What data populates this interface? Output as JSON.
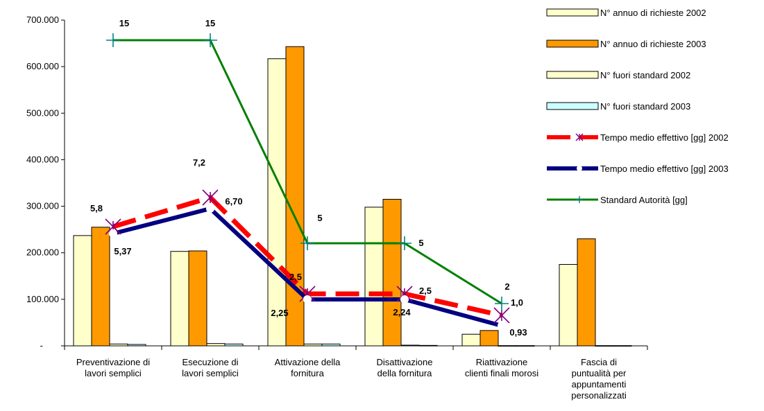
{
  "chart_data": {
    "type": "bar",
    "categories": [
      [
        "Preventivazione di",
        "lavori semplici"
      ],
      [
        "Esecuzione di",
        "lavori semplici"
      ],
      [
        "Attivazione della",
        "fornitura"
      ],
      [
        "Disattivazione",
        "della fornitura"
      ],
      [
        "Riattivazione",
        "clienti finali morosi"
      ],
      [
        "Fascia di",
        "puntualità per",
        "appuntamenti",
        "personalizzati"
      ]
    ],
    "ylim": [
      0,
      700000
    ],
    "yticks": [
      0,
      100000,
      200000,
      300000,
      400000,
      500000,
      600000,
      700000
    ],
    "ytick_labels": [
      "-",
      "100.000",
      "200.000",
      "300.000",
      "400.000",
      "500.000",
      "600.000",
      "700.000"
    ],
    "series": [
      {
        "name": "N° annuo di richieste 2002",
        "kind": "bar",
        "color": "#FFFFCC",
        "values": [
          237000,
          203000,
          617000,
          298000,
          25000,
          175000
        ]
      },
      {
        "name": "N° annuo di richieste 2003",
        "kind": "bar",
        "color": "#FF9900",
        "values": [
          255000,
          204000,
          643000,
          315000,
          33000,
          230000
        ]
      },
      {
        "name": "N° fuori standard 2002",
        "kind": "bar",
        "color": "#FFFFCC",
        "values": [
          4000,
          5000,
          4000,
          1500,
          500,
          500
        ]
      },
      {
        "name": "N° fuori standard 2003",
        "kind": "bar",
        "color": "#CCFFFF",
        "values": [
          3000,
          4000,
          4000,
          1000,
          500,
          500
        ]
      },
      {
        "name": "Tempo medio effettivo [gg] 2002",
        "kind": "line",
        "color": "#FF0000",
        "marker_color": "#800080",
        "values": [
          5.8,
          7.2,
          2.5,
          2.5,
          1.0,
          null
        ],
        "labels": [
          "5,8",
          "7,2",
          "2,5",
          "2,5",
          "1,0",
          ""
        ]
      },
      {
        "name": "Tempo medio effettivo [gg] 2003",
        "kind": "line",
        "color": "#000080",
        "values": [
          5.37,
          6.7,
          2.25,
          2.24,
          0.93,
          null
        ],
        "labels": [
          "5,37",
          "6,70",
          "2,25",
          "2,24",
          "0,93",
          ""
        ]
      },
      {
        "name": "Standard Autorità [gg]",
        "kind": "line",
        "color": "#008000",
        "marker_color": "#008080",
        "values": [
          15,
          15,
          5,
          5,
          2,
          null
        ],
        "labels": [
          "15",
          "15",
          "5",
          "5",
          "2",
          ""
        ]
      }
    ],
    "legend_position": "top-right",
    "grid": false
  }
}
